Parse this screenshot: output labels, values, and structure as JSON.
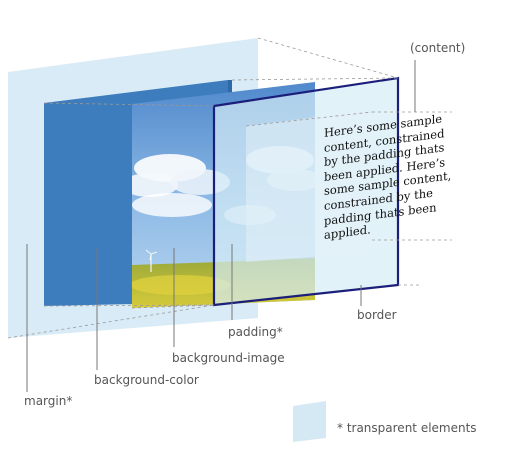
{
  "labels": {
    "content": "(content)",
    "border": "border",
    "padding": "padding*",
    "background_image": "background-image",
    "background_color": "background-color",
    "margin": "margin*",
    "legend": "* transparent elements"
  },
  "sample_text": "Here’s some sample content, constrained by the padding thats been applied. Here’s some sample content, constrained by the padding thats been applied.",
  "colors": {
    "margin_layer": "#d5e9f5",
    "background_color_layer": "#3d7dbe",
    "padding_layer": "#cfe6f2",
    "border": "#1c1f7a",
    "sky": "#6d9fd6",
    "field": "#c8c23a",
    "leader_line": "#777777",
    "label_text": "#555555"
  }
}
